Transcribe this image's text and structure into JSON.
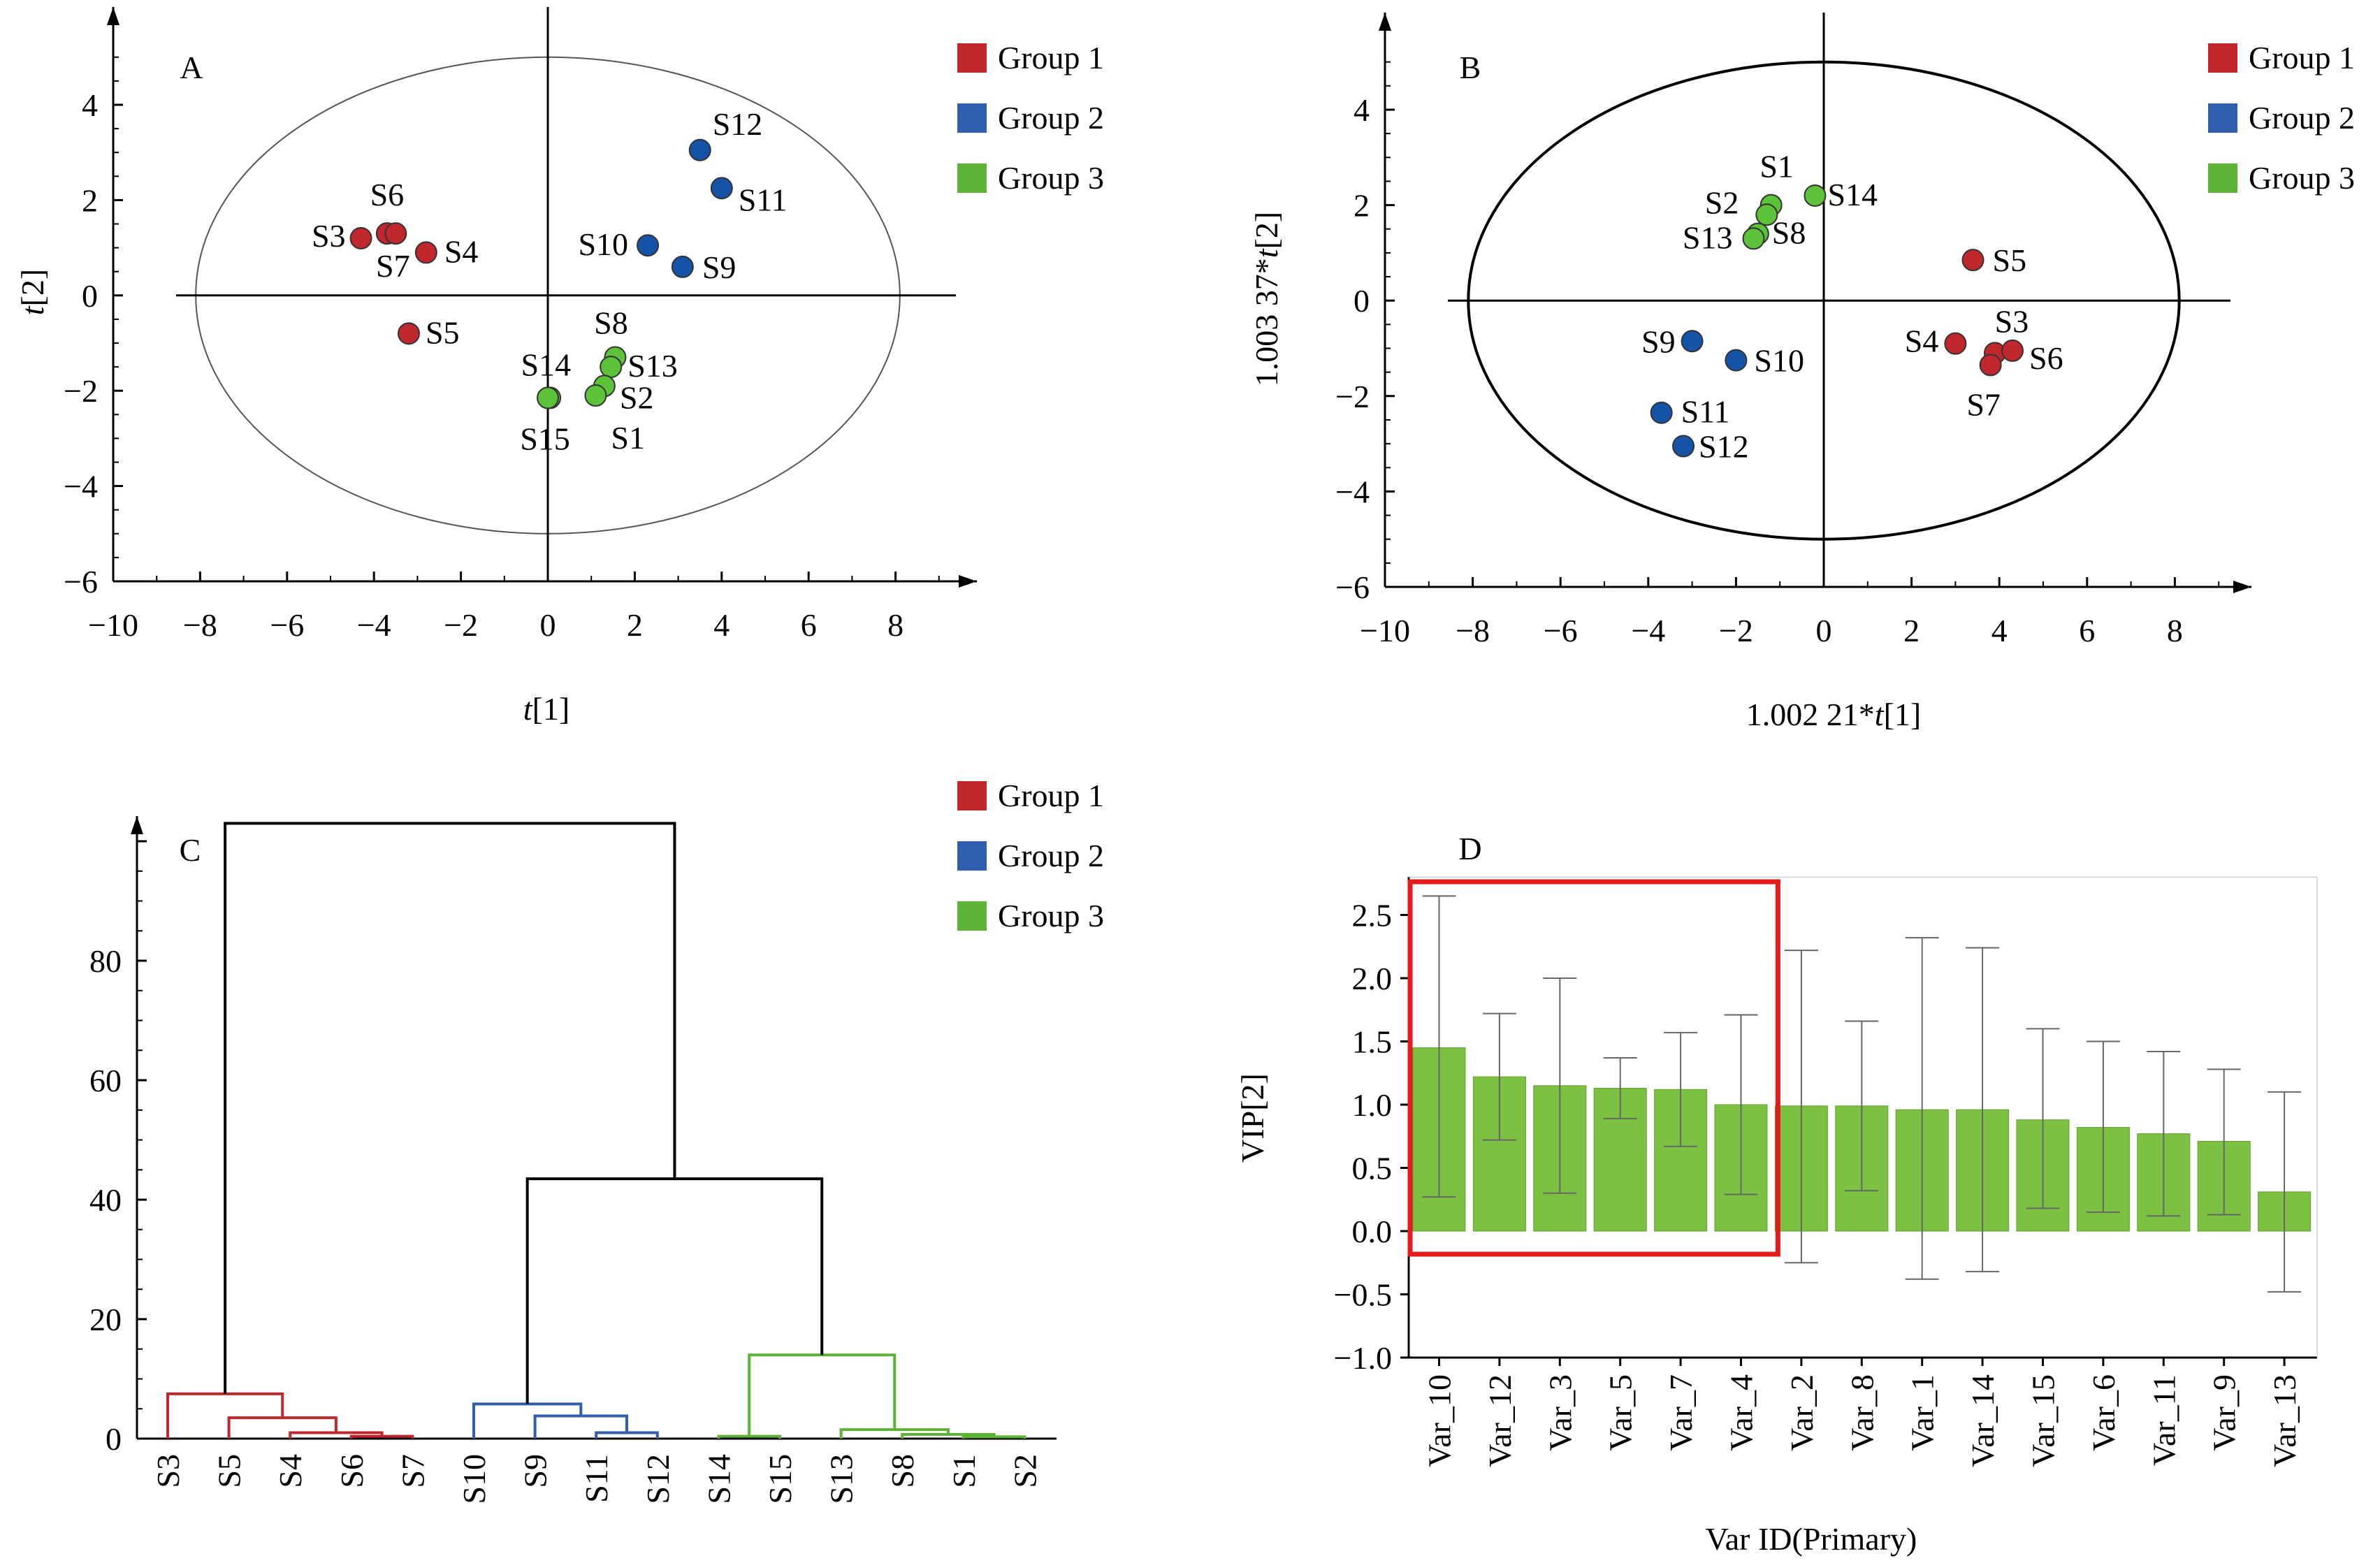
{
  "chart_data": [
    {
      "id": "A",
      "type": "scatter",
      "panel_label": "A",
      "xlabel_prefix": "",
      "xlabel_var": "t",
      "xlabel_suffix": "[1]",
      "ylabel_prefix": "",
      "ylabel_var": "t",
      "ylabel_suffix": "[2]",
      "xlim": [
        -10,
        10
      ],
      "ylim": [
        -6,
        5.5
      ],
      "xticks": [
        -10,
        -8,
        -6,
        -4,
        -2,
        0,
        2,
        4,
        6,
        8
      ],
      "yticks": [
        -6,
        -4,
        -2,
        0,
        2,
        4
      ],
      "ellipse": {
        "rx": 8.1,
        "ry": 5
      },
      "ellipse_color": "#555555",
      "legend": [
        "Group 1",
        "Group 2",
        "Group 3"
      ],
      "points": [
        {
          "label": "S3",
          "x": -4.3,
          "y": 1.2,
          "group": 0
        },
        {
          "label": "S6",
          "x": -3.7,
          "y": 1.3,
          "group": 0
        },
        {
          "label": "S7",
          "x": -3.5,
          "y": 1.3,
          "group": 0
        },
        {
          "label": "S4",
          "x": -2.8,
          "y": 0.9,
          "group": 0
        },
        {
          "label": "S5",
          "x": -3.2,
          "y": -0.8,
          "group": 0
        },
        {
          "label": "S12",
          "x": 3.5,
          "y": 3.05,
          "group": 1
        },
        {
          "label": "S11",
          "x": 4.0,
          "y": 2.25,
          "group": 1
        },
        {
          "label": "S10",
          "x": 2.3,
          "y": 1.05,
          "group": 1
        },
        {
          "label": "S9",
          "x": 3.1,
          "y": 0.6,
          "group": 1
        },
        {
          "label": "S8",
          "x": 1.55,
          "y": -1.3,
          "group": 2
        },
        {
          "label": "S13",
          "x": 1.45,
          "y": -1.5,
          "group": 2
        },
        {
          "label": "S2",
          "x": 1.3,
          "y": -1.9,
          "group": 2
        },
        {
          "label": "S1",
          "x": 1.1,
          "y": -2.1,
          "group": 2
        },
        {
          "label": "S14",
          "x": 0.05,
          "y": -2.15,
          "group": 2
        },
        {
          "label": "S15",
          "x": 0.0,
          "y": -2.15,
          "group": 2
        }
      ]
    },
    {
      "id": "B",
      "type": "scatter",
      "panel_label": "B",
      "xlabel_prefix": "1.002 21*",
      "xlabel_var": "t",
      "xlabel_suffix": "[1]",
      "ylabel_prefix": "1.003 37*",
      "ylabel_var": "t",
      "ylabel_suffix": "[2]",
      "xlim": [
        -10,
        10
      ],
      "ylim": [
        -6,
        5.5
      ],
      "xticks": [
        -10,
        -8,
        -6,
        -4,
        -2,
        0,
        2,
        4,
        6,
        8
      ],
      "yticks": [
        -6,
        -4,
        -2,
        0,
        2,
        4
      ],
      "ellipse": {
        "rx": 8.1,
        "ry": 5
      },
      "ellipse_color": "#000000",
      "legend": [
        "Group 1",
        "Group 2",
        "Group 3"
      ],
      "points": [
        {
          "label": "S1",
          "x": -1.2,
          "y": 2.0,
          "group": 2
        },
        {
          "label": "S2",
          "x": -1.3,
          "y": 1.8,
          "group": 2
        },
        {
          "label": "S14",
          "x": -0.2,
          "y": 2.2,
          "group": 2
        },
        {
          "label": "S8",
          "x": -1.5,
          "y": 1.4,
          "group": 2
        },
        {
          "label": "S13",
          "x": -1.6,
          "y": 1.3,
          "group": 2
        },
        {
          "label": "S5",
          "x": 3.4,
          "y": 0.85,
          "group": 0
        },
        {
          "label": "S4",
          "x": 3.0,
          "y": -0.9,
          "group": 0
        },
        {
          "label": "S3",
          "x": 3.9,
          "y": -1.1,
          "group": 0
        },
        {
          "label": "S6",
          "x": 4.3,
          "y": -1.05,
          "group": 0
        },
        {
          "label": "S7",
          "x": 3.8,
          "y": -1.35,
          "group": 0
        },
        {
          "label": "S9",
          "x": -3.0,
          "y": -0.85,
          "group": 1
        },
        {
          "label": "S10",
          "x": -2.0,
          "y": -1.25,
          "group": 1
        },
        {
          "label": "S11",
          "x": -3.7,
          "y": -2.35,
          "group": 1
        },
        {
          "label": "S12",
          "x": -3.2,
          "y": -3.05,
          "group": 1
        }
      ]
    },
    {
      "id": "C",
      "type": "dendrogram",
      "panel_label": "C",
      "leaves": [
        "S3",
        "S5",
        "S4",
        "S6",
        "S7",
        "S10",
        "S9",
        "S11",
        "S12",
        "S14",
        "S15",
        "S13",
        "S8",
        "S1",
        "S2"
      ],
      "leaf_groups": [
        0,
        0,
        0,
        0,
        0,
        1,
        1,
        1,
        1,
        2,
        2,
        2,
        2,
        2,
        2
      ],
      "ylim": [
        0,
        103
      ],
      "yticks": [
        0,
        20,
        40,
        60,
        80
      ],
      "legend": [
        "Group 1",
        "Group 2",
        "Group 3"
      ],
      "links": [
        {
          "a": "S6",
          "b": "S7",
          "h": 0.4,
          "group": 0
        },
        {
          "a": "S4",
          "b": "S6S7",
          "h": 1.0,
          "group": 0
        },
        {
          "a": "S5",
          "b": "S4S6S7",
          "h": 3.5,
          "group": 0
        },
        {
          "a": "S3",
          "b": "S5S4S6S7",
          "h": 7.5,
          "group": 0
        },
        {
          "a": "S11",
          "b": "S12",
          "h": 1.0,
          "group": 1
        },
        {
          "a": "S9",
          "b": "S11S12",
          "h": 3.8,
          "group": 1
        },
        {
          "a": "S10",
          "b": "S9S11S12",
          "h": 5.8,
          "group": 1
        },
        {
          "a": "S1",
          "b": "S2",
          "h": 0.3,
          "group": 2
        },
        {
          "a": "S14",
          "b": "S15",
          "h": 0.4,
          "group": 2
        },
        {
          "a": "S8",
          "b": "S1S2",
          "h": 0.7,
          "group": 2
        },
        {
          "a": "S13",
          "b": "S8S1S2",
          "h": 1.5,
          "group": 2
        },
        {
          "a": "S14S15",
          "b": "S13S8S1S2",
          "h": 14,
          "group": 2
        },
        {
          "a": "S10S9S11S12",
          "b": "S14S15S13S8S1S2",
          "h": 43.5,
          "group": 3
        },
        {
          "a": "S3S5S4S6S7",
          "b": "S10S9S11S12S14S15S13S8S1S2",
          "h": 103,
          "group": 3
        }
      ]
    },
    {
      "id": "D",
      "type": "bar",
      "panel_label": "D",
      "xlabel": "Var ID(Primary)",
      "ylabel": "VIP[2]",
      "categories": [
        "Var_10",
        "Var_12",
        "Var_3",
        "Var_5",
        "Var_7",
        "Var_4",
        "Var_2",
        "Var_8",
        "Var_1",
        "Var_14",
        "Var_15",
        "Var_6",
        "Var_11",
        "Var_9",
        "Var_13"
      ],
      "values": [
        1.45,
        1.22,
        1.15,
        1.13,
        1.12,
        1.0,
        0.99,
        0.99,
        0.96,
        0.96,
        0.88,
        0.82,
        0.77,
        0.71,
        0.31
      ],
      "err_high": [
        2.65,
        1.72,
        2.0,
        1.37,
        1.57,
        1.71,
        2.22,
        1.66,
        2.32,
        2.24,
        1.6,
        1.5,
        1.42,
        1.28,
        1.1
      ],
      "err_low": [
        0.27,
        0.72,
        0.3,
        0.89,
        0.67,
        0.29,
        -0.25,
        0.32,
        -0.38,
        -0.32,
        0.18,
        0.15,
        0.12,
        0.13,
        -0.48
      ],
      "ylim": [
        -1.0,
        2.8
      ],
      "yticks": [
        -1.0,
        -0.5,
        0.0,
        0.5,
        1.0,
        1.5,
        2.0,
        2.5
      ],
      "ytick_labels": [
        "−1.0",
        "−0.5",
        "0.0",
        "0.5",
        "1.0",
        "1.5",
        "2.0",
        "2.5"
      ],
      "highlight_first_n": 6,
      "highlight_color": "#e31b1b",
      "bar_color": "#7dc142"
    }
  ],
  "colors": {
    "group": [
      "#c0272d",
      "#2f5fae",
      "#5cb335"
    ],
    "link_root": "#000000",
    "point_fill": [
      "#c0272d",
      "#1553a8",
      "#5cc23a"
    ]
  }
}
